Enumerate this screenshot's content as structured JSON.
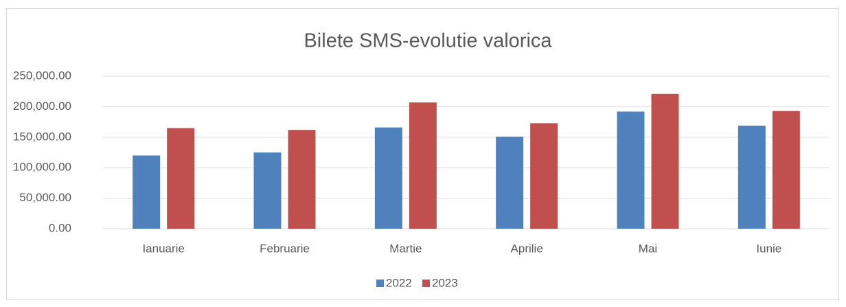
{
  "chart_data": {
    "type": "bar",
    "title": "Bilete SMS-evolutie valorica",
    "categories": [
      "Ianuarie",
      "Februarie",
      "Martie",
      "Aprilie",
      "Mai",
      "Iunie"
    ],
    "series": [
      {
        "name": "2022",
        "color": "#4f81bd",
        "values": [
          120000,
          125000,
          166000,
          151000,
          192000,
          169000
        ]
      },
      {
        "name": "2023",
        "color": "#c0504d",
        "values": [
          165000,
          162000,
          207000,
          173000,
          221000,
          193000
        ]
      }
    ],
    "ylim": [
      0,
      250000
    ],
    "yticks": [
      {
        "value": 0,
        "label": "0.00"
      },
      {
        "value": 50000,
        "label": "50,000.00"
      },
      {
        "value": 100000,
        "label": "100,000.00"
      },
      {
        "value": 150000,
        "label": "150,000.00"
      },
      {
        "value": 200000,
        "label": "200,000.00"
      },
      {
        "value": 250000,
        "label": "250,000.00"
      }
    ],
    "grid": true,
    "legend": "bottom"
  }
}
